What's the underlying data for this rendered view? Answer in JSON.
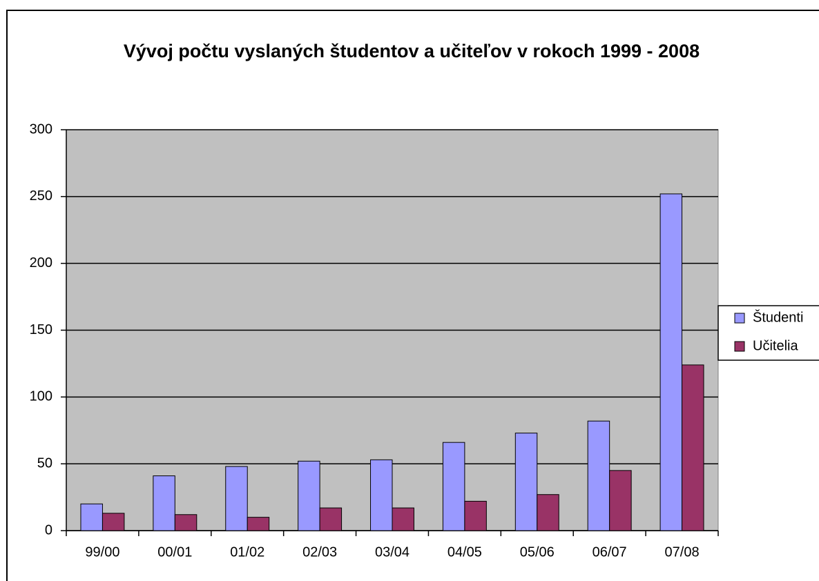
{
  "chart_data": {
    "type": "bar",
    "title": "Vývoj počtu vyslaných študentov a učiteľov v rokoch 1999 - 2008",
    "categories": [
      "99/00",
      "00/01",
      "01/02",
      "02/03",
      "03/04",
      "04/05",
      "05/06",
      "06/07",
      "07/08"
    ],
    "series": [
      {
        "name": "Študenti",
        "color": "#9999ff",
        "values": [
          20,
          41,
          48,
          52,
          53,
          66,
          73,
          82,
          252
        ]
      },
      {
        "name": "Učitelia",
        "color": "#993366",
        "values": [
          13,
          12,
          10,
          17,
          17,
          22,
          27,
          45,
          124
        ]
      }
    ],
    "ylim": [
      0,
      300
    ],
    "yticks": [
      0,
      50,
      100,
      150,
      200,
      250,
      300
    ],
    "grid": true,
    "legend": "right"
  }
}
